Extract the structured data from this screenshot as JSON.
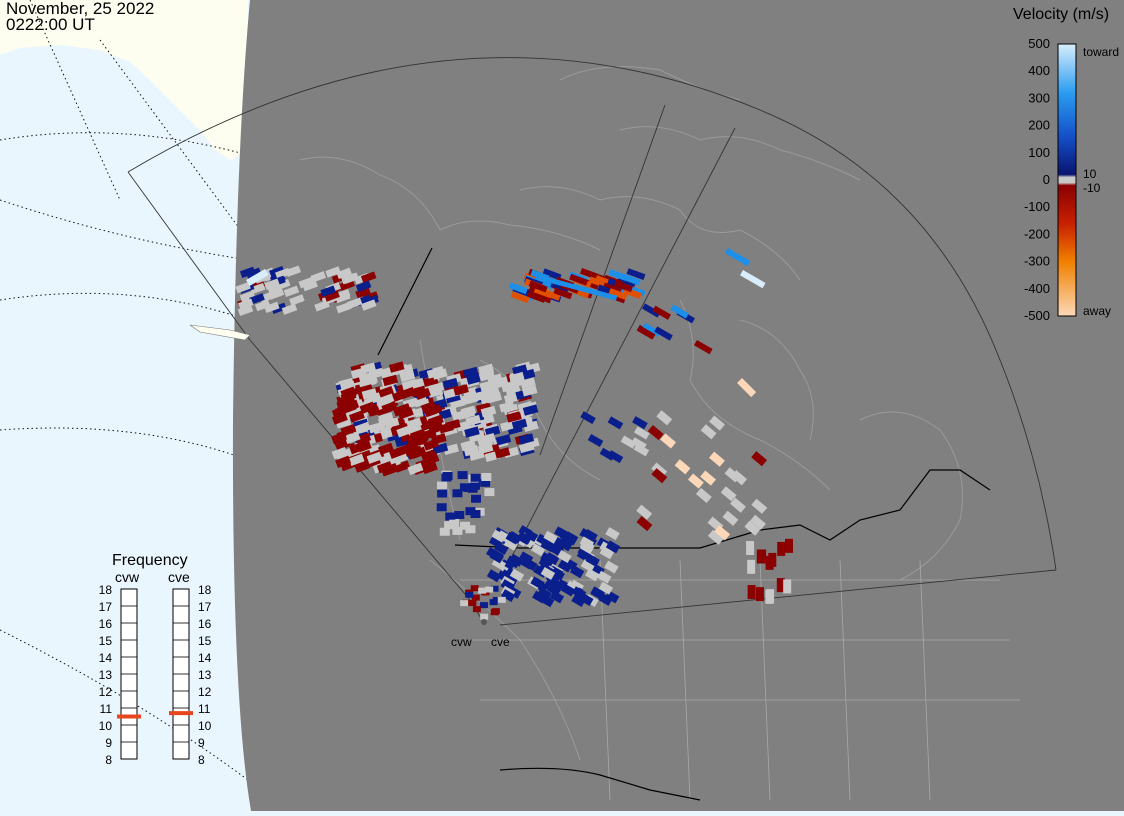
{
  "header": {
    "date": "November, 25 2022",
    "time": "0222:00 UT"
  },
  "velocity_scale": {
    "title": "Velocity (m/s)",
    "ticks": [
      "500",
      "400",
      "300",
      "200",
      "100",
      "0",
      "-100",
      "-200",
      "-300",
      "-400",
      "-500"
    ],
    "label_toward": "toward",
    "label_away": "away",
    "label_pos10": "10",
    "label_neg10": "-10",
    "colors": {
      "toward_strong": "#d8eefc",
      "toward_mid": "#1d8fe8",
      "toward_weak": "#0b1f8c",
      "near_zero": "#c8c8c8",
      "away_weak": "#8b0000",
      "away_mid": "#e05000",
      "away_strong": "#fcd8b8"
    }
  },
  "frequency_panel": {
    "title": "Frequency",
    "radars": [
      {
        "name": "cvw",
        "freq_mhz": 10.5
      },
      {
        "name": "cve",
        "freq_mhz": 10.7
      }
    ],
    "ticks": [
      "18",
      "17",
      "16",
      "15",
      "14",
      "13",
      "12",
      "11",
      "10",
      "9",
      "8"
    ],
    "marker_color": "#e8461e"
  },
  "map": {
    "radar_labels": [
      "cvw",
      "cve"
    ],
    "land_color": "#808080",
    "background_color": "#eaf6fe",
    "ice_color": "#fdfdf0"
  }
}
